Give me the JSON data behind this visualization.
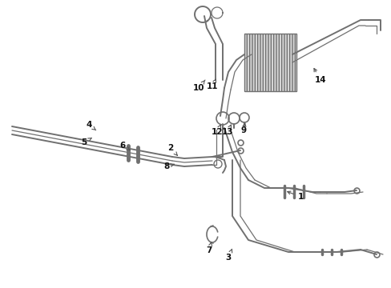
{
  "bg_color": "#ffffff",
  "line_color": "#707070",
  "figsize": [
    4.89,
    3.6
  ],
  "dpi": 100
}
